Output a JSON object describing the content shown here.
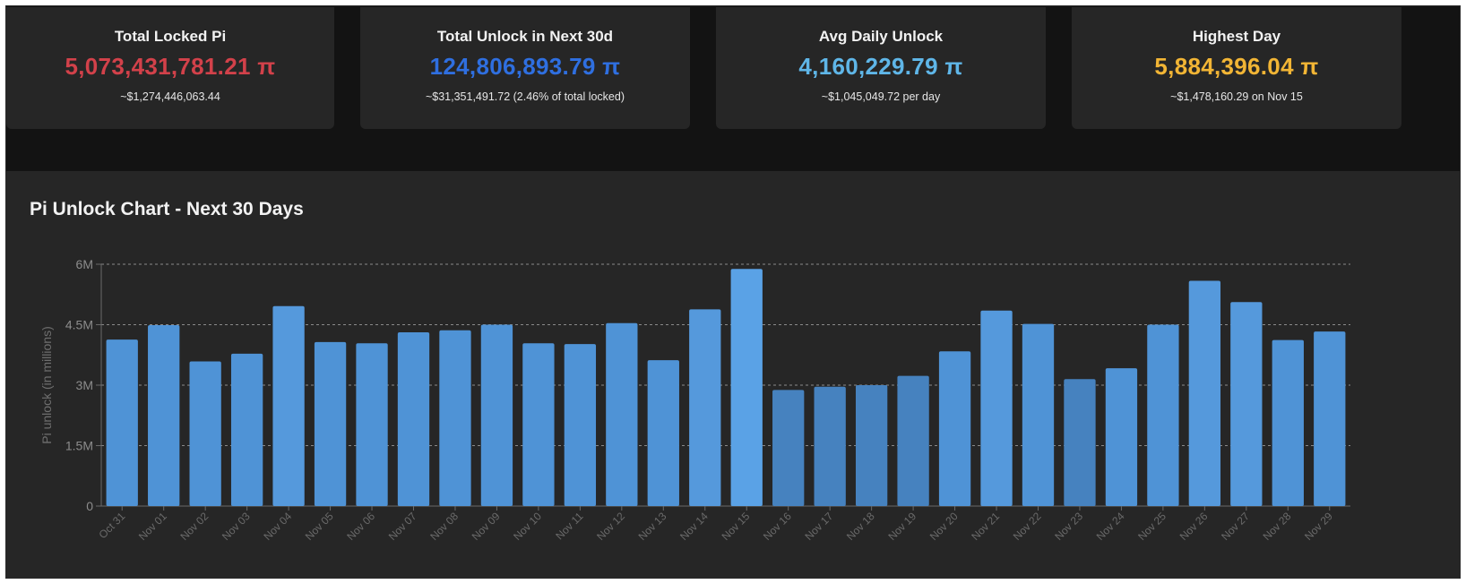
{
  "cards": [
    {
      "title": "Total Locked Pi",
      "value": "5,073,431,781.21 π",
      "sub": "~$1,274,446,063.44",
      "color": "#d2414a"
    },
    {
      "title": "Total Unlock in Next 30d",
      "value": "124,806,893.79 π",
      "sub": "~$31,351,491.72 (2.46% of total locked)",
      "color": "#2f6fe0"
    },
    {
      "title": "Avg Daily Unlock",
      "value": "4,160,229.79 π",
      "sub": "~$1,045,049.72 per day",
      "color": "#5fb6e8"
    },
    {
      "title": "Highest Day",
      "value": "5,884,396.04 π",
      "sub": "~$1,478,160.29 on Nov 15",
      "color": "#f2b535"
    }
  ],
  "panel": {
    "title": "Pi Unlock Chart - Next 30 Days"
  },
  "chart_data": {
    "type": "bar",
    "title": "Pi Unlock Chart - Next 30 Days",
    "xlabel": "",
    "ylabel": "Pi unlock (in millions)",
    "ylim": [
      0,
      6000000
    ],
    "yticks": [
      {
        "value": 0,
        "label": "0"
      },
      {
        "value": 1500000,
        "label": "1.5M"
      },
      {
        "value": 3000000,
        "label": "3M"
      },
      {
        "value": 4500000,
        "label": "4.5M"
      },
      {
        "value": 6000000,
        "label": "6M"
      }
    ],
    "grid": true,
    "bar_color": "#4f93d6",
    "categories": [
      "Oct 31",
      "Nov 01",
      "Nov 02",
      "Nov 03",
      "Nov 04",
      "Nov 05",
      "Nov 06",
      "Nov 07",
      "Nov 08",
      "Nov 09",
      "Nov 10",
      "Nov 11",
      "Nov 12",
      "Nov 13",
      "Nov 14",
      "Nov 15",
      "Nov 16",
      "Nov 17",
      "Nov 18",
      "Nov 19",
      "Nov 20",
      "Nov 21",
      "Nov 22",
      "Nov 23",
      "Nov 24",
      "Nov 25",
      "Nov 26",
      "Nov 27",
      "Nov 28",
      "Nov 29"
    ],
    "values": [
      4130000,
      4490000,
      3590000,
      3780000,
      4960000,
      4070000,
      4040000,
      4310000,
      4360000,
      4500000,
      4040000,
      4020000,
      4540000,
      3620000,
      4880000,
      5884396,
      2880000,
      2960000,
      3000000,
      3230000,
      3840000,
      4850000,
      4520000,
      3150000,
      3420000,
      4500000,
      5590000,
      5060000,
      4120000,
      4330000
    ]
  }
}
